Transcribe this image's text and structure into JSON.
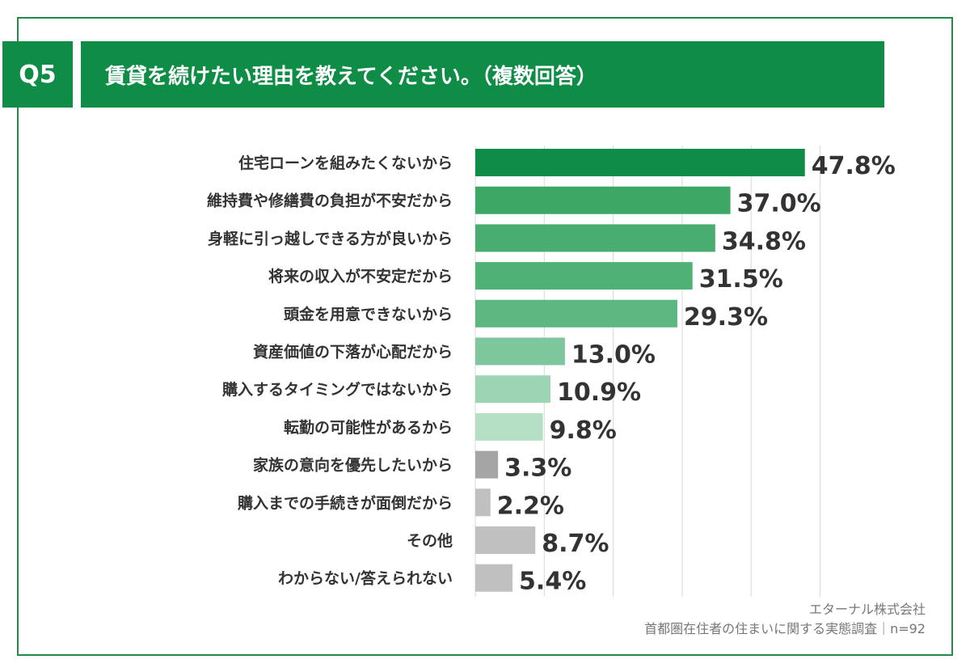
{
  "header": {
    "q_label": "Q5",
    "title": "賃貸を続けたい理由を教えてください。（複数回答）"
  },
  "chart_data": {
    "type": "bar",
    "orientation": "horizontal",
    "categories": [
      "住宅ローンを組みたくないから",
      "維持費や修繕費の負担が不安だから",
      "身軽に引っ越しできる方が良いから",
      "将来の収入が不安定だから",
      "頭金を用意できないから",
      "資産価値の下落が心配だから",
      "購入するタイミングではないから",
      "転勤の可能性があるから",
      "家族の意向を優先したいから",
      "購入までの手続きが面倒だから",
      "その他",
      "わからない/答えられない"
    ],
    "values": [
      47.8,
      37.0,
      34.8,
      31.5,
      29.3,
      13.0,
      10.9,
      9.8,
      3.3,
      2.2,
      8.7,
      5.4
    ],
    "value_labels": [
      "47.8%",
      "37.0%",
      "34.8%",
      "31.5%",
      "29.3%",
      "13.0%",
      "10.9%",
      "9.8%",
      "3.3%",
      "2.2%",
      "8.7%",
      "5.4%"
    ],
    "colors": [
      "#0f8c45",
      "#3da866",
      "#4aad70",
      "#50b176",
      "#5cb780",
      "#7ec79c",
      "#9dd5b4",
      "#b5e0c6",
      "#a5a5a5",
      "#c0c0c0",
      "#c0c0c0",
      "#c0c0c0"
    ],
    "xlim": [
      0,
      50
    ],
    "grid": true
  },
  "footer": {
    "company": "エターナル株式会社",
    "survey": "首都圏在住者の住まいに関する実態調査｜n=92"
  }
}
